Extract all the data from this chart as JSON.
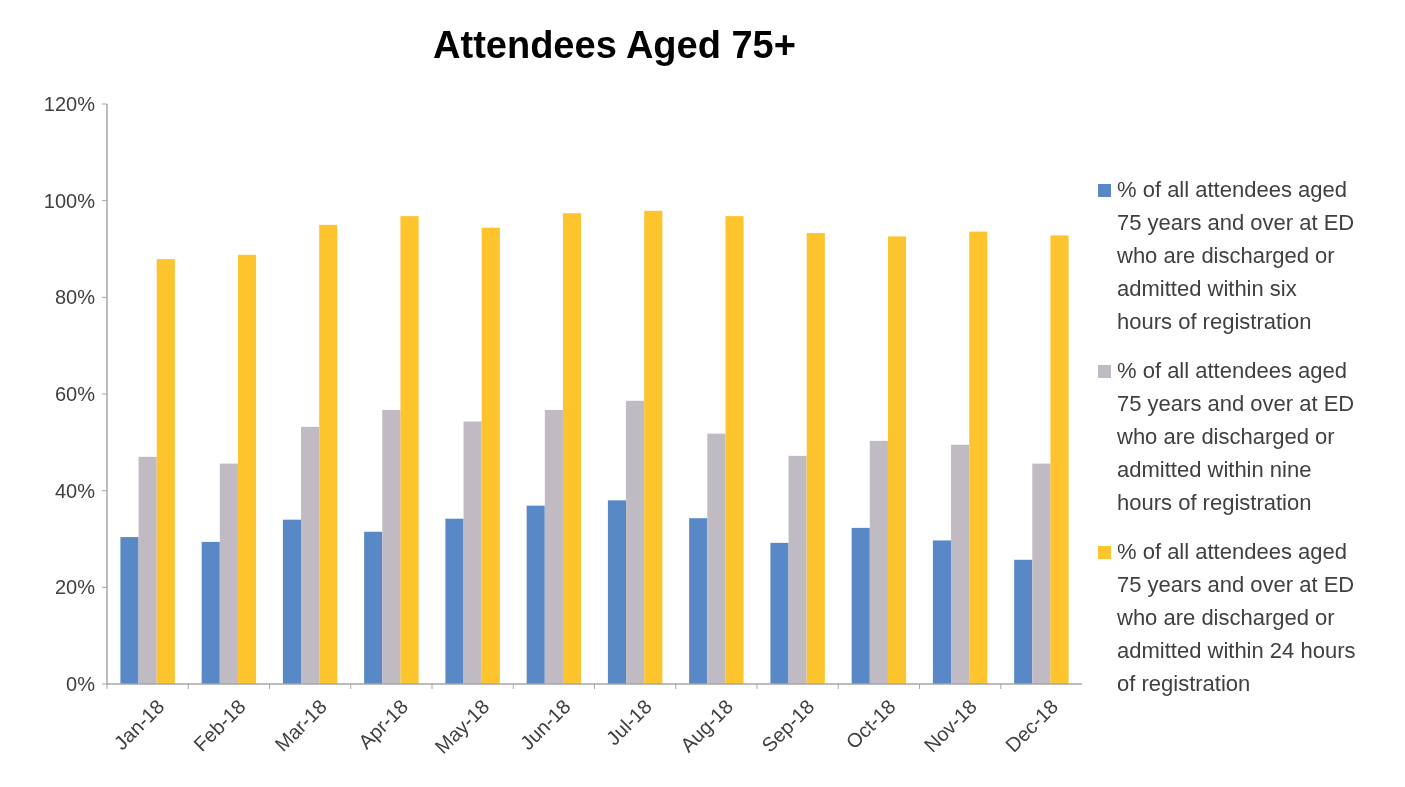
{
  "chart_data": {
    "type": "bar",
    "title": "Attendees Aged 75+",
    "categories": [
      "Jan-18",
      "Feb-18",
      "Mar-18",
      "Apr-18",
      "May-18",
      "Jun-18",
      "Jul-18",
      "Aug-18",
      "Sep-18",
      "Oct-18",
      "Nov-18",
      "Dec-18"
    ],
    "series": [
      {
        "name": "% of all attendees aged 75 years and over at ED who are discharged or admitted within six hours of registration",
        "color": "#5889c6",
        "values": [
          30.4,
          29.4,
          34.0,
          31.5,
          34.2,
          36.9,
          38.0,
          34.3,
          29.2,
          32.3,
          29.7,
          25.7
        ]
      },
      {
        "name": "% of all attendees aged 75 years and over at ED who are discharged or admitted within nine hours of registration",
        "color": "#c0bac2",
        "values": [
          47.0,
          45.6,
          53.2,
          56.7,
          54.3,
          56.7,
          58.6,
          51.8,
          47.2,
          50.3,
          49.5,
          45.6
        ]
      },
      {
        "name": "% of all attendees aged 75 years and over at ED who are discharged or admitted within 24 hours of registration",
        "color": "#fec42d",
        "values": [
          87.9,
          88.8,
          95.0,
          96.8,
          94.4,
          97.4,
          97.9,
          96.8,
          93.3,
          92.6,
          93.6,
          92.8
        ]
      }
    ],
    "ylim": [
      0,
      120
    ],
    "yticks": [
      {
        "value": 0,
        "label": "0%"
      },
      {
        "value": 20,
        "label": "20%"
      },
      {
        "value": 40,
        "label": "40%"
      },
      {
        "value": 60,
        "label": "60%"
      },
      {
        "value": 80,
        "label": "80%"
      },
      {
        "value": 100,
        "label": "100%"
      },
      {
        "value": 120,
        "label": "120%"
      }
    ],
    "legend": "right"
  }
}
